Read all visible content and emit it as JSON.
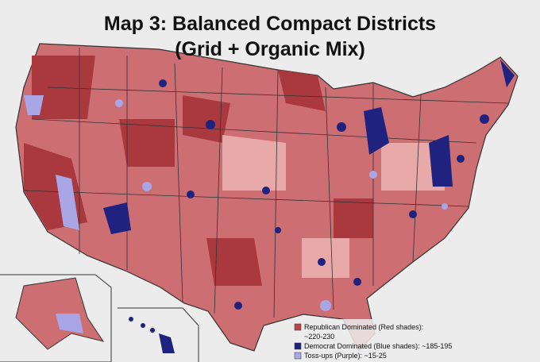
{
  "title": [
    "Map 3: Balanced Compact Districts",
    "(Grid + Organic Mix)"
  ],
  "legend": [
    {
      "lines": [
        "Republican Dominated (Red shades):",
        "~220-230"
      ],
      "color": "#b8474d"
    },
    {
      "lines": [
        "Democrat Dominated (Blue shades): ~185-195"
      ],
      "color": "#1f237f"
    },
    {
      "lines": [
        "Toss-ups (Purple): ~15-25"
      ],
      "color": "#a9a6e6"
    }
  ]
}
